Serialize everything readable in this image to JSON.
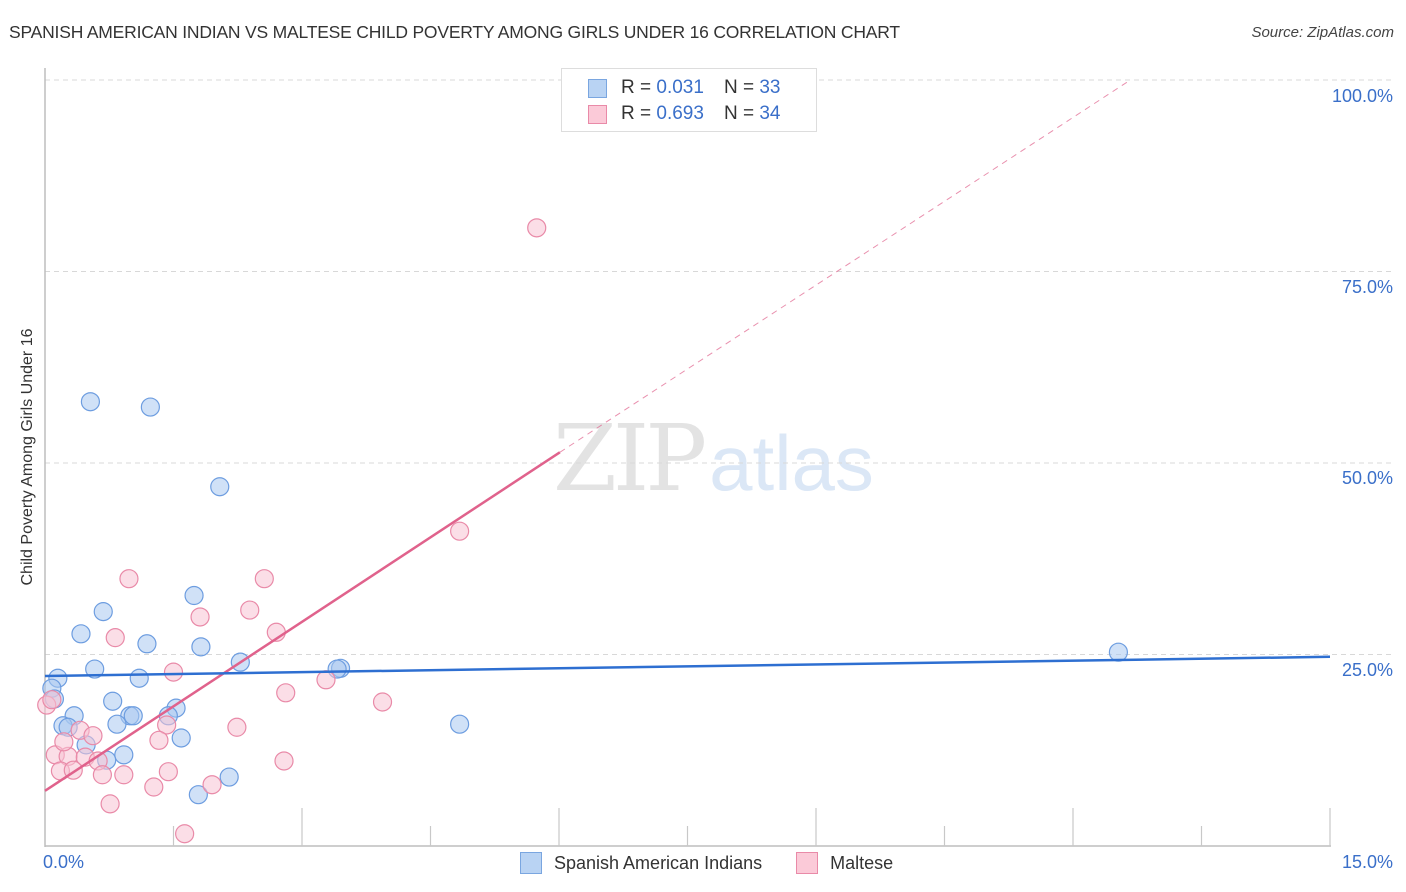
{
  "header": {
    "title": "SPANISH AMERICAN INDIAN VS MALTESE CHILD POVERTY AMONG GIRLS UNDER 16 CORRELATION CHART",
    "source": "Source: ZipAtlas.com"
  },
  "legend": {
    "rows": [
      {
        "r_label": "R =",
        "r_value": "0.031",
        "n_label": "N =",
        "n_value": "33",
        "color": "#a9c8f0",
        "border": "#7aa6e0"
      },
      {
        "r_label": "R =",
        "r_value": "0.693",
        "n_label": "N =",
        "n_value": "34",
        "color": "#f8c3d3",
        "border": "#e98aa8"
      }
    ]
  },
  "bottom_legend": [
    {
      "label": "Spanish American Indians",
      "color": "#b9d3f3",
      "border": "#7aa6e0"
    },
    {
      "label": "Maltese",
      "color": "#fbcad8",
      "border": "#e98aa8"
    }
  ],
  "axes": {
    "ylabel": "Child Poverty Among Girls Under 16",
    "yticks": [
      "100.0%",
      "75.0%",
      "50.0%",
      "25.0%"
    ],
    "xticks": {
      "min": "0.0%",
      "max": "15.0%"
    }
  },
  "watermark": {
    "zip": "ZIP",
    "atlas": "atlas"
  },
  "colors": {
    "blue_fill": "#a9c8f0",
    "blue_stroke": "#6d9de0",
    "blue_line": "#2e6fd1",
    "pink_fill": "#f8c3d3",
    "pink_stroke": "#e98aa8",
    "pink_line": "#e0628c",
    "axis_label": "#3a6fc9",
    "grid": "#d8d8d8"
  },
  "chart_data": {
    "type": "scatter",
    "title": "SPANISH AMERICAN INDIAN VS MALTESE CHILD POVERTY AMONG GIRLS UNDER 16 CORRELATION CHART",
    "xlabel": "",
    "ylabel": "Child Poverty Among Girls Under 16",
    "xlim": [
      0,
      15
    ],
    "ylim": [
      0,
      100
    ],
    "x_unit": "%",
    "y_unit": "%",
    "yticks": [
      25,
      50,
      75,
      100
    ],
    "xtick_labels": [
      "0.0%",
      "15.0%"
    ],
    "grid": {
      "horizontal": true,
      "style": "dashed"
    },
    "legend_position": "top-center",
    "series": [
      {
        "name": "Spanish American Indians",
        "R": 0.031,
        "N": 33,
        "points": [
          [
            0.53,
            58.0
          ],
          [
            1.23,
            57.3
          ],
          [
            2.04,
            46.9
          ],
          [
            1.74,
            32.7
          ],
          [
            0.68,
            30.6
          ],
          [
            0.42,
            27.7
          ],
          [
            1.19,
            26.4
          ],
          [
            1.82,
            26.0
          ],
          [
            2.28,
            24.0
          ],
          [
            0.15,
            21.9
          ],
          [
            0.58,
            23.1
          ],
          [
            1.1,
            21.9
          ],
          [
            3.45,
            23.2
          ],
          [
            3.41,
            23.1
          ],
          [
            0.08,
            20.6
          ],
          [
            0.11,
            19.2
          ],
          [
            0.79,
            18.9
          ],
          [
            1.53,
            18.0
          ],
          [
            0.34,
            17.0
          ],
          [
            0.99,
            17.0
          ],
          [
            1.03,
            17.0
          ],
          [
            1.44,
            17.0
          ],
          [
            0.21,
            15.7
          ],
          [
            0.27,
            15.5
          ],
          [
            0.84,
            15.9
          ],
          [
            4.84,
            15.9
          ],
          [
            1.59,
            14.1
          ],
          [
            0.48,
            13.2
          ],
          [
            0.92,
            11.9
          ],
          [
            0.72,
            11.2
          ],
          [
            2.15,
            9.0
          ],
          [
            1.79,
            6.7
          ],
          [
            12.53,
            25.3
          ]
        ],
        "trendline": {
          "x": [
            0,
            15
          ],
          "y": [
            22.2,
            24.7
          ]
        }
      },
      {
        "name": "Maltese",
        "R": 0.693,
        "N": 34,
        "points": [
          [
            5.74,
            80.7
          ],
          [
            4.84,
            41.1
          ],
          [
            0.98,
            34.9
          ],
          [
            2.56,
            34.9
          ],
          [
            1.81,
            29.9
          ],
          [
            2.39,
            30.8
          ],
          [
            2.7,
            27.9
          ],
          [
            0.82,
            27.2
          ],
          [
            1.5,
            22.7
          ],
          [
            2.81,
            20.0
          ],
          [
            3.28,
            21.7
          ],
          [
            3.94,
            18.8
          ],
          [
            0.02,
            18.4
          ],
          [
            1.42,
            15.8
          ],
          [
            2.24,
            15.5
          ],
          [
            0.41,
            15.1
          ],
          [
            0.56,
            14.4
          ],
          [
            1.33,
            13.8
          ],
          [
            0.12,
            11.9
          ],
          [
            0.27,
            11.7
          ],
          [
            0.47,
            11.6
          ],
          [
            0.62,
            11.1
          ],
          [
            2.79,
            11.1
          ],
          [
            0.18,
            9.8
          ],
          [
            0.33,
            9.9
          ],
          [
            0.67,
            9.3
          ],
          [
            0.92,
            9.3
          ],
          [
            1.44,
            9.7
          ],
          [
            1.27,
            7.7
          ],
          [
            1.95,
            8.0
          ],
          [
            0.76,
            5.5
          ],
          [
            1.63,
            1.6
          ],
          [
            0.08,
            19.1
          ],
          [
            0.22,
            13.6
          ]
        ],
        "trendline": {
          "x": [
            0,
            6.01
          ],
          "y": [
            7.2,
            51.4
          ],
          "dashed_extension_to": [
            12.67,
            100
          ]
        }
      }
    ]
  }
}
